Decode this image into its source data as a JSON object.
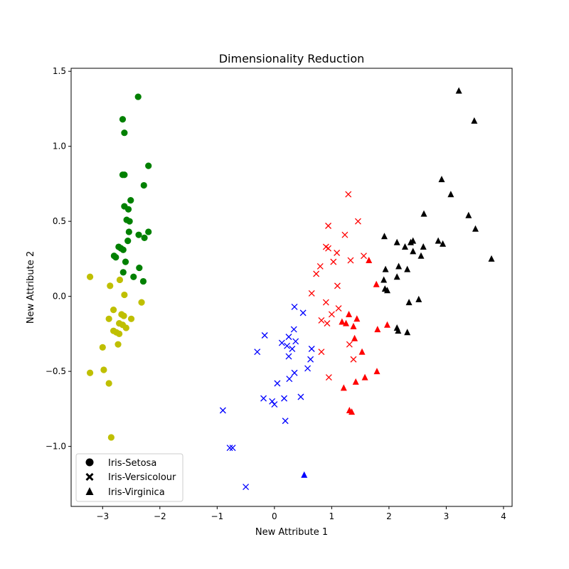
{
  "chart_data": {
    "type": "scatter",
    "title": "Dimensionality Reduction",
    "xlabel": "New Attribute 1",
    "ylabel": "New Attribute 2",
    "xlim": [
      -3.55,
      4.15
    ],
    "ylim": [
      -1.4,
      1.52
    ],
    "xticks": [
      -3,
      -2,
      -1,
      0,
      1,
      2,
      3,
      4
    ],
    "xtick_labels": [
      "−3",
      "−2",
      "−1",
      "0",
      "1",
      "2",
      "3",
      "4"
    ],
    "yticks": [
      -1.0,
      -0.5,
      0.0,
      0.5,
      1.0,
      1.5
    ],
    "ytick_labels": [
      "−1.0",
      "−0.5",
      "0.0",
      "0.5",
      "1.0",
      "1.5"
    ],
    "grid": false,
    "legend": {
      "placement": "lower-left",
      "entries": [
        {
          "label": "Iris-Setosa",
          "marker": "circle"
        },
        {
          "label": "Iris-Versicolour",
          "marker": "x"
        },
        {
          "label": "Iris-Virginica",
          "marker": "triangle"
        }
      ]
    },
    "colors": {
      "green": "#008000",
      "yellow": "#bfbf00",
      "blue": "#0000ff",
      "red": "#ff0000",
      "black": "#000000"
    },
    "series": [
      {
        "marker": "circle",
        "color": "green",
        "points": [
          [
            -2.38,
            1.33
          ],
          [
            -2.65,
            1.18
          ],
          [
            -2.62,
            1.09
          ],
          [
            -2.2,
            0.87
          ],
          [
            -2.65,
            0.81
          ],
          [
            -2.62,
            0.81
          ],
          [
            -2.28,
            0.74
          ],
          [
            -2.51,
            0.64
          ],
          [
            -2.62,
            0.6
          ],
          [
            -2.55,
            0.58
          ],
          [
            -2.58,
            0.51
          ],
          [
            -2.53,
            0.5
          ],
          [
            -2.54,
            0.43
          ],
          [
            -2.2,
            0.43
          ],
          [
            -2.37,
            0.41
          ],
          [
            -2.27,
            0.39
          ],
          [
            -2.56,
            0.37
          ],
          [
            -2.72,
            0.33
          ],
          [
            -2.68,
            0.32
          ],
          [
            -2.64,
            0.31
          ],
          [
            -2.8,
            0.27
          ],
          [
            -2.77,
            0.26
          ],
          [
            -2.6,
            0.23
          ],
          [
            -2.36,
            0.19
          ],
          [
            -2.64,
            0.16
          ],
          [
            -2.46,
            0.13
          ],
          [
            -2.29,
            0.1
          ]
        ]
      },
      {
        "marker": "circle",
        "color": "yellow",
        "points": [
          [
            -3.22,
            0.13
          ],
          [
            -2.7,
            0.11
          ],
          [
            -2.87,
            0.07
          ],
          [
            -2.62,
            0.01
          ],
          [
            -2.32,
            -0.04
          ],
          [
            -2.81,
            -0.09
          ],
          [
            -2.67,
            -0.12
          ],
          [
            -2.63,
            -0.13
          ],
          [
            -2.5,
            -0.15
          ],
          [
            -2.89,
            -0.15
          ],
          [
            -2.71,
            -0.18
          ],
          [
            -2.65,
            -0.19
          ],
          [
            -2.59,
            -0.21
          ],
          [
            -2.81,
            -0.23
          ],
          [
            -2.76,
            -0.24
          ],
          [
            -2.71,
            -0.25
          ],
          [
            -2.73,
            -0.32
          ],
          [
            -3.0,
            -0.34
          ],
          [
            -2.98,
            -0.49
          ],
          [
            -3.22,
            -0.51
          ],
          [
            -2.89,
            -0.58
          ],
          [
            -2.85,
            -0.94
          ]
        ]
      },
      {
        "marker": "x",
        "color": "blue",
        "points": [
          [
            0.35,
            -0.07
          ],
          [
            0.5,
            -0.11
          ],
          [
            0.34,
            -0.22
          ],
          [
            -0.17,
            -0.26
          ],
          [
            0.25,
            -0.27
          ],
          [
            0.37,
            -0.3
          ],
          [
            0.13,
            -0.31
          ],
          [
            0.22,
            -0.33
          ],
          [
            0.31,
            -0.35
          ],
          [
            0.65,
            -0.35
          ],
          [
            -0.3,
            -0.37
          ],
          [
            0.25,
            -0.4
          ],
          [
            0.63,
            -0.42
          ],
          [
            0.58,
            -0.48
          ],
          [
            0.35,
            -0.51
          ],
          [
            0.26,
            -0.55
          ],
          [
            0.05,
            -0.58
          ],
          [
            -0.19,
            -0.68
          ],
          [
            0.17,
            -0.68
          ],
          [
            0.46,
            -0.67
          ],
          [
            -0.04,
            -0.7
          ],
          [
            0.0,
            -0.72
          ],
          [
            -0.9,
            -0.76
          ],
          [
            0.19,
            -0.83
          ],
          [
            -0.78,
            -1.01
          ],
          [
            -0.73,
            -1.01
          ],
          [
            -0.5,
            -1.27
          ]
        ]
      },
      {
        "marker": "x",
        "color": "red",
        "points": [
          [
            1.29,
            0.68
          ],
          [
            1.46,
            0.5
          ],
          [
            0.94,
            0.47
          ],
          [
            1.23,
            0.41
          ],
          [
            0.9,
            0.33
          ],
          [
            0.94,
            0.32
          ],
          [
            1.09,
            0.29
          ],
          [
            1.56,
            0.27
          ],
          [
            1.33,
            0.24
          ],
          [
            1.03,
            0.23
          ],
          [
            0.8,
            0.2
          ],
          [
            0.73,
            0.15
          ],
          [
            1.1,
            0.07
          ],
          [
            0.65,
            0.02
          ],
          [
            0.9,
            -0.04
          ],
          [
            1.12,
            -0.08
          ],
          [
            1.0,
            -0.12
          ],
          [
            0.82,
            -0.16
          ],
          [
            0.92,
            -0.18
          ],
          [
            0.82,
            -0.37
          ],
          [
            1.31,
            -0.32
          ],
          [
            1.38,
            -0.42
          ],
          [
            0.95,
            -0.54
          ]
        ]
      },
      {
        "marker": "triangle",
        "color": "red",
        "points": [
          [
            1.65,
            0.24
          ],
          [
            1.78,
            0.08
          ],
          [
            1.3,
            -0.12
          ],
          [
            1.44,
            -0.15
          ],
          [
            1.18,
            -0.17
          ],
          [
            1.25,
            -0.18
          ],
          [
            1.97,
            -0.19
          ],
          [
            1.38,
            -0.2
          ],
          [
            1.8,
            -0.22
          ],
          [
            1.4,
            -0.28
          ],
          [
            1.53,
            -0.37
          ],
          [
            1.79,
            -0.5
          ],
          [
            1.58,
            -0.54
          ],
          [
            1.42,
            -0.57
          ],
          [
            1.21,
            -0.61
          ],
          [
            1.31,
            -0.76
          ],
          [
            1.35,
            -0.77
          ]
        ]
      },
      {
        "marker": "triangle",
        "color": "blue",
        "points": [
          [
            0.52,
            -1.19
          ]
        ]
      },
      {
        "marker": "triangle",
        "color": "black",
        "points": [
          [
            3.22,
            1.37
          ],
          [
            3.49,
            1.17
          ],
          [
            2.92,
            0.78
          ],
          [
            3.08,
            0.68
          ],
          [
            2.61,
            0.55
          ],
          [
            3.39,
            0.54
          ],
          [
            3.51,
            0.45
          ],
          [
            1.92,
            0.4
          ],
          [
            2.38,
            0.36
          ],
          [
            2.42,
            0.37
          ],
          [
            2.14,
            0.36
          ],
          [
            2.28,
            0.33
          ],
          [
            2.6,
            0.33
          ],
          [
            2.86,
            0.37
          ],
          [
            2.94,
            0.35
          ],
          [
            2.42,
            0.3
          ],
          [
            2.56,
            0.27
          ],
          [
            3.79,
            0.25
          ],
          [
            2.17,
            0.2
          ],
          [
            1.94,
            0.18
          ],
          [
            2.32,
            0.18
          ],
          [
            2.14,
            0.13
          ],
          [
            1.91,
            0.11
          ],
          [
            1.93,
            0.05
          ],
          [
            1.97,
            0.04
          ],
          [
            2.52,
            -0.02
          ],
          [
            2.35,
            -0.04
          ],
          [
            2.14,
            -0.21
          ],
          [
            2.16,
            -0.23
          ],
          [
            2.32,
            -0.24
          ]
        ]
      }
    ]
  }
}
